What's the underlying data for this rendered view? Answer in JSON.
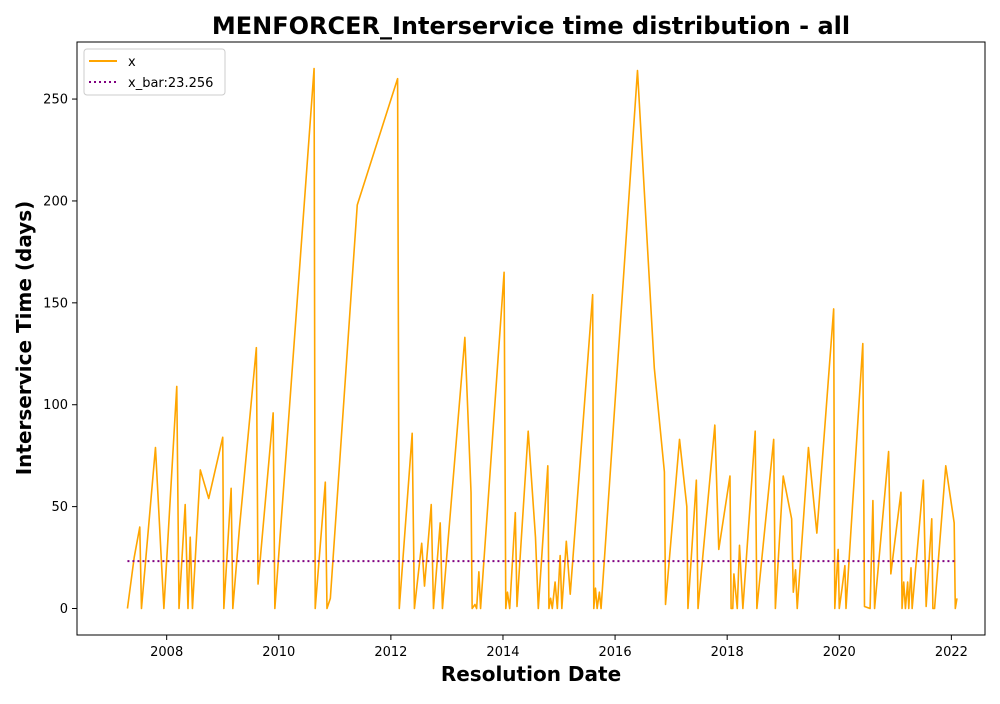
{
  "chart_data": {
    "type": "line",
    "title": "MENFORCER_Interservice time distribution - all",
    "xlabel": "Resolution Date",
    "ylabel": "Interservice Time (days)",
    "xlim": [
      2006.4,
      2022.6
    ],
    "ylim": [
      -13,
      278
    ],
    "x_ticks": [
      2008,
      2010,
      2012,
      2014,
      2016,
      2018,
      2020,
      2022
    ],
    "y_ticks": [
      0,
      50,
      100,
      150,
      200,
      250
    ],
    "legend_position": "upper-left",
    "grid": false,
    "series": [
      {
        "name": "x",
        "color": "#ffa500",
        "style": "solid",
        "points": [
          [
            2007.3,
            0
          ],
          [
            2007.42,
            25
          ],
          [
            2007.52,
            40
          ],
          [
            2007.55,
            0
          ],
          [
            2007.8,
            79
          ],
          [
            2007.95,
            0
          ],
          [
            2008.18,
            109
          ],
          [
            2008.22,
            0
          ],
          [
            2008.33,
            51
          ],
          [
            2008.38,
            0
          ],
          [
            2008.42,
            35
          ],
          [
            2008.46,
            0
          ],
          [
            2008.6,
            68
          ],
          [
            2008.75,
            54
          ],
          [
            2009.0,
            84
          ],
          [
            2009.02,
            0
          ],
          [
            2009.15,
            59
          ],
          [
            2009.18,
            0
          ],
          [
            2009.3,
            40
          ],
          [
            2009.6,
            128
          ],
          [
            2009.63,
            12
          ],
          [
            2009.9,
            96
          ],
          [
            2009.93,
            0
          ],
          [
            2010.63,
            265
          ],
          [
            2010.65,
            0
          ],
          [
            2010.83,
            62
          ],
          [
            2010.86,
            0
          ],
          [
            2010.92,
            5
          ],
          [
            2011.4,
            198
          ],
          [
            2012.12,
            260
          ],
          [
            2012.15,
            0
          ],
          [
            2012.38,
            86
          ],
          [
            2012.42,
            0
          ],
          [
            2012.55,
            32
          ],
          [
            2012.6,
            11
          ],
          [
            2012.72,
            51
          ],
          [
            2012.76,
            0
          ],
          [
            2012.88,
            42
          ],
          [
            2012.92,
            0
          ],
          [
            2013.32,
            133
          ],
          [
            2013.43,
            57
          ],
          [
            2013.45,
            0
          ],
          [
            2013.5,
            2
          ],
          [
            2013.53,
            0
          ],
          [
            2013.57,
            18
          ],
          [
            2013.6,
            0
          ],
          [
            2014.02,
            165
          ],
          [
            2014.05,
            0
          ],
          [
            2014.08,
            8
          ],
          [
            2014.12,
            0
          ],
          [
            2014.22,
            47
          ],
          [
            2014.25,
            1
          ],
          [
            2014.45,
            87
          ],
          [
            2014.58,
            35
          ],
          [
            2014.63,
            0
          ],
          [
            2014.8,
            70
          ],
          [
            2014.82,
            0
          ],
          [
            2014.85,
            5
          ],
          [
            2014.88,
            0
          ],
          [
            2014.93,
            13
          ],
          [
            2014.97,
            0
          ],
          [
            2015.02,
            26
          ],
          [
            2015.05,
            0
          ],
          [
            2015.13,
            33
          ],
          [
            2015.2,
            7
          ],
          [
            2015.6,
            154
          ],
          [
            2015.62,
            0
          ],
          [
            2015.65,
            10
          ],
          [
            2015.68,
            0
          ],
          [
            2015.72,
            8
          ],
          [
            2015.75,
            0
          ],
          [
            2016.4,
            264
          ],
          [
            2016.7,
            118
          ],
          [
            2016.88,
            67
          ],
          [
            2016.9,
            2
          ],
          [
            2017.15,
            83
          ],
          [
            2017.28,
            50
          ],
          [
            2017.3,
            0
          ],
          [
            2017.45,
            63
          ],
          [
            2017.48,
            0
          ],
          [
            2017.78,
            90
          ],
          [
            2017.85,
            29
          ],
          [
            2018.05,
            65
          ],
          [
            2018.07,
            0
          ],
          [
            2018.1,
            0
          ],
          [
            2018.12,
            17
          ],
          [
            2018.18,
            0
          ],
          [
            2018.22,
            31
          ],
          [
            2018.28,
            0
          ],
          [
            2018.5,
            87
          ],
          [
            2018.53,
            0
          ],
          [
            2018.83,
            83
          ],
          [
            2018.86,
            0
          ],
          [
            2019.0,
            65
          ],
          [
            2019.15,
            44
          ],
          [
            2019.18,
            8
          ],
          [
            2019.22,
            19
          ],
          [
            2019.25,
            0
          ],
          [
            2019.45,
            79
          ],
          [
            2019.6,
            37
          ],
          [
            2019.9,
            147
          ],
          [
            2019.92,
            0
          ],
          [
            2019.98,
            29
          ],
          [
            2020.0,
            0
          ],
          [
            2020.05,
            10
          ],
          [
            2020.1,
            21
          ],
          [
            2020.12,
            0
          ],
          [
            2020.42,
            130
          ],
          [
            2020.45,
            1
          ],
          [
            2020.55,
            0
          ],
          [
            2020.6,
            53
          ],
          [
            2020.63,
            0
          ],
          [
            2020.88,
            77
          ],
          [
            2020.92,
            17
          ],
          [
            2021.1,
            57
          ],
          [
            2021.12,
            0
          ],
          [
            2021.15,
            13
          ],
          [
            2021.18,
            0
          ],
          [
            2021.22,
            13
          ],
          [
            2021.24,
            0
          ],
          [
            2021.28,
            20
          ],
          [
            2021.3,
            0
          ],
          [
            2021.5,
            63
          ],
          [
            2021.55,
            1
          ],
          [
            2021.65,
            44
          ],
          [
            2021.67,
            0
          ],
          [
            2021.7,
            0
          ],
          [
            2021.9,
            70
          ],
          [
            2022.05,
            42
          ],
          [
            2022.07,
            0
          ],
          [
            2022.1,
            5
          ]
        ]
      },
      {
        "name": "x_bar:23.256",
        "color": "#800080",
        "style": "dotted",
        "points": [
          [
            2007.3,
            23.256
          ],
          [
            2022.1,
            23.256
          ]
        ]
      }
    ]
  }
}
